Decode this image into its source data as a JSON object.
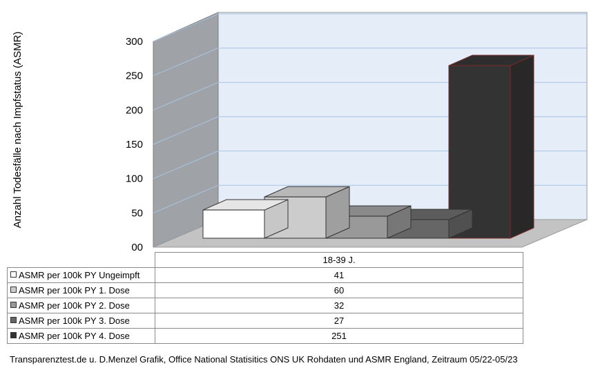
{
  "chart_data": {
    "type": "bar",
    "ylabel": "Anzahl Todesfälle nach Impfstatus (ASMR)",
    "yticks": [
      "00",
      "50",
      "100",
      "150",
      "200",
      "250",
      "300"
    ],
    "ylim": [
      0,
      300
    ],
    "grid": true,
    "legend": "table-below",
    "categories": [
      "18-39 J."
    ],
    "series": [
      {
        "name": "ASMR per 100k PY Ungeimpft",
        "values": [
          41
        ],
        "color": "#ffffff"
      },
      {
        "name": "ASMR per 100k PY 1. Dose",
        "values": [
          60
        ],
        "color": "#cccccc"
      },
      {
        "name": "ASMR per 100k PY 2. Dose",
        "values": [
          32
        ],
        "color": "#999999"
      },
      {
        "name": "ASMR per 100k PY 3. Dose",
        "values": [
          27
        ],
        "color": "#666666"
      },
      {
        "name": "ASMR per 100k PY 4. Dose",
        "values": [
          251
        ],
        "color": "#333333"
      }
    ],
    "table_values": [
      "41",
      "60",
      "32",
      "27",
      "251"
    ]
  },
  "source": "Transparenztest.de u. D.Menzel Grafik, Office National Statisitics ONS UK Rohdaten und ASMR England, Zeitraum 05/22-05/23"
}
